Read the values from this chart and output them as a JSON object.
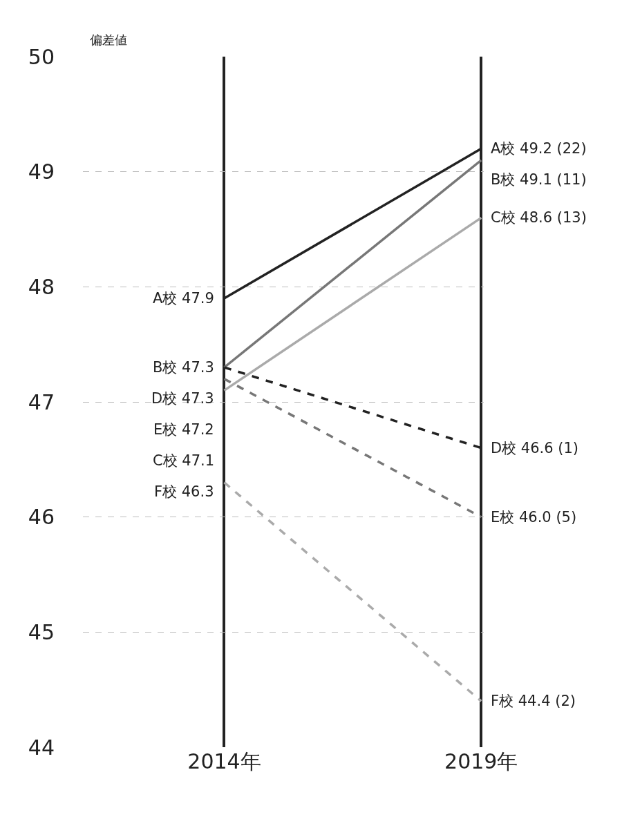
{
  "chart_data": {
    "type": "line",
    "ylabel": "偏差値",
    "categories": [
      "2014年",
      "2019年"
    ],
    "ylim": [
      44,
      50
    ],
    "yticks": [
      44,
      45,
      46,
      47,
      48,
      49,
      50
    ],
    "grid": true,
    "legend": false,
    "marker": "none",
    "series": [
      {
        "name": "A校",
        "color": "#222222",
        "line_style": "solid",
        "values": [
          47.9,
          49.2
        ],
        "value_labels": [
          "47.9",
          "49.2 (22)"
        ]
      },
      {
        "name": "B校",
        "color": "#777777",
        "line_style": "solid",
        "values": [
          47.3,
          49.1
        ],
        "value_labels": [
          "47.3",
          "49.1 (11)"
        ]
      },
      {
        "name": "C校",
        "color": "#aaaaaa",
        "line_style": "solid",
        "values": [
          47.1,
          48.6
        ],
        "value_labels": [
          "47.1",
          "48.6 (13)"
        ]
      },
      {
        "name": "D校",
        "color": "#222222",
        "line_style": "dashed",
        "values": [
          47.3,
          46.6
        ],
        "value_labels": [
          "47.3",
          "46.6 (1)"
        ]
      },
      {
        "name": "E校",
        "color": "#777777",
        "line_style": "dashed",
        "values": [
          47.2,
          46.0
        ],
        "value_labels": [
          "47.2",
          "46.0 (5)"
        ]
      },
      {
        "name": "F校",
        "color": "#aaaaaa",
        "line_style": "dashed",
        "values": [
          46.3,
          44.4
        ],
        "value_labels": [
          "46.3",
          "44.4 (2)"
        ]
      }
    ]
  }
}
